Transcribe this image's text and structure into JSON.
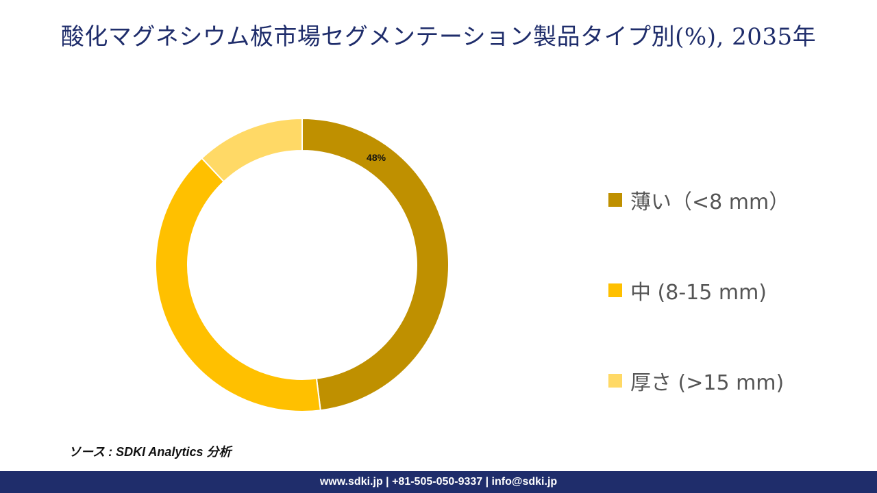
{
  "title": "酸化マグネシウム板市場セグメンテーション製品タイプ別(%), 2035年",
  "source": "ソース : SDKI Analytics 分析",
  "footer": "www.sdki.jp | +81-505-050-9337 | info@sdki.jp",
  "chart_data": {
    "type": "pie",
    "style": "donut",
    "categories": [
      "薄い（<8 mm）",
      "中 (8-15 mm)",
      "厚さ (>15 mm)"
    ],
    "values": [
      48,
      40,
      12
    ],
    "colors": [
      "#bf9000",
      "#ffc000",
      "#ffd966"
    ],
    "data_labels": [
      "48%",
      "",
      ""
    ],
    "legend_position": "right"
  }
}
